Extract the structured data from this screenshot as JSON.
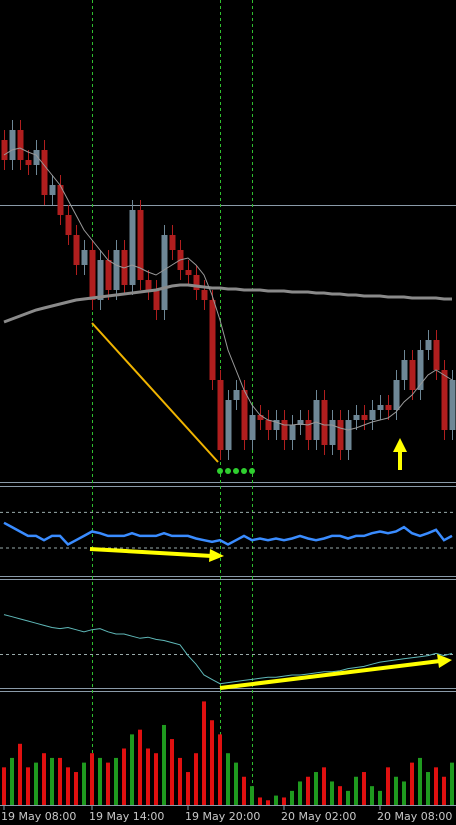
{
  "chart_data": {
    "type": "candlestick",
    "categories": [
      "19 May 08:00",
      null,
      null,
      null,
      null,
      null,
      null,
      null,
      null,
      null,
      null,
      "19 May 14:00",
      null,
      null,
      null,
      null,
      null,
      null,
      null,
      null,
      null,
      null,
      null,
      "19 May 20:00",
      null,
      null,
      null,
      null,
      null,
      null,
      null,
      null,
      null,
      null,
      null,
      "20 May 02:00",
      null,
      null,
      null,
      null,
      null,
      null,
      null,
      null,
      null,
      null,
      null,
      "20 May 08:00",
      null,
      null,
      null,
      null,
      null,
      null,
      null,
      null,
      null
    ],
    "open": [
      340,
      320,
      350,
      320,
      315,
      330,
      285,
      295,
      265,
      245,
      215,
      230,
      180,
      220,
      190,
      230,
      195,
      270,
      200,
      190,
      170,
      245,
      230,
      210,
      205,
      190,
      180,
      100,
      30,
      80,
      90,
      40,
      65,
      60,
      50,
      60,
      40,
      55,
      60,
      40,
      80,
      35,
      60,
      30,
      60,
      65,
      60,
      70,
      75,
      70,
      100,
      120,
      90,
      130,
      140,
      110,
      50
    ],
    "high": [
      350,
      360,
      360,
      330,
      340,
      340,
      305,
      305,
      275,
      255,
      240,
      240,
      230,
      230,
      240,
      240,
      280,
      280,
      210,
      200,
      255,
      255,
      240,
      220,
      215,
      200,
      190,
      110,
      90,
      100,
      100,
      75,
      75,
      70,
      70,
      70,
      65,
      70,
      70,
      90,
      90,
      70,
      70,
      70,
      75,
      75,
      80,
      85,
      85,
      110,
      130,
      130,
      140,
      150,
      150,
      120,
      110
    ],
    "low": [
      310,
      310,
      310,
      305,
      305,
      275,
      275,
      255,
      235,
      205,
      205,
      170,
      170,
      180,
      180,
      185,
      185,
      190,
      180,
      160,
      160,
      220,
      200,
      195,
      180,
      170,
      90,
      20,
      20,
      70,
      30,
      30,
      50,
      40,
      40,
      30,
      30,
      45,
      30,
      30,
      25,
      25,
      20,
      20,
      50,
      50,
      50,
      60,
      60,
      60,
      90,
      80,
      80,
      120,
      100,
      40,
      40
    ],
    "close": [
      320,
      350,
      320,
      315,
      330,
      285,
      295,
      265,
      245,
      215,
      230,
      180,
      220,
      190,
      230,
      195,
      270,
      200,
      190,
      170,
      245,
      230,
      210,
      205,
      190,
      180,
      100,
      30,
      80,
      90,
      40,
      65,
      60,
      50,
      60,
      40,
      55,
      60,
      40,
      80,
      35,
      60,
      30,
      60,
      65,
      60,
      70,
      75,
      70,
      100,
      120,
      90,
      130,
      140,
      110,
      50,
      100
    ],
    "ylim": [
      0,
      480
    ],
    "up_color": "#6e8796",
    "down_color": "#b01e1e",
    "series": [
      {
        "color": "#8a8a8a",
        "values": [
          158,
          161,
          164,
          167,
          170,
          172,
          174,
          176,
          178,
          180,
          181,
          182,
          183,
          184,
          185,
          186,
          187,
          188,
          189,
          190,
          192,
          194,
          195,
          195,
          194,
          193,
          192,
          192,
          191,
          191,
          190,
          190,
          190,
          189,
          189,
          189,
          188,
          188,
          188,
          187,
          187,
          186,
          186,
          185,
          185,
          184,
          184,
          184,
          183,
          183,
          183,
          182,
          182,
          182,
          182,
          181,
          181
        ]
      },
      {
        "color": "#9a9a9a",
        "values": [
          325,
          330,
          332,
          328,
          325,
          315,
          305,
          295,
          280,
          265,
          250,
          240,
          230,
          220,
          215,
          212,
          215,
          212,
          208,
          205,
          210,
          215,
          220,
          222,
          215,
          205,
          185,
          160,
          130,
          110,
          90,
          75,
          65,
          60,
          58,
          55,
          55,
          56,
          55,
          58,
          55,
          55,
          52,
          50,
          52,
          55,
          58,
          60,
          62,
          68,
          78,
          85,
          95,
          105,
          110,
          105,
          100
        ]
      }
    ],
    "oscillator": {
      "color": "#3a8cff",
      "ylim": [
        0,
        100
      ],
      "levels": [
        72,
        31
      ],
      "values": [
        60,
        55,
        50,
        45,
        45,
        40,
        45,
        45,
        35,
        40,
        45,
        50,
        48,
        45,
        45,
        45,
        48,
        45,
        45,
        45,
        48,
        45,
        45,
        45,
        42,
        40,
        38,
        40,
        35,
        40,
        45,
        40,
        42,
        40,
        42,
        40,
        42,
        45,
        42,
        40,
        42,
        45,
        45,
        42,
        45,
        45,
        48,
        50,
        48,
        50,
        55,
        48,
        45,
        48,
        52,
        40,
        45
      ]
    },
    "indicator": {
      "color": "#5fb8b8",
      "ylim": [
        0,
        100
      ],
      "levels": [
        31
      ],
      "values": [
        68,
        66,
        64,
        62,
        60,
        58,
        56,
        55,
        56,
        54,
        52,
        54,
        55,
        52,
        50,
        50,
        48,
        46,
        47,
        45,
        44,
        42,
        40,
        30,
        22,
        12,
        8,
        4,
        5,
        6,
        7,
        8,
        9,
        10,
        10,
        11,
        12,
        12,
        13,
        14,
        15,
        15,
        16,
        18,
        19,
        20,
        22,
        24,
        25,
        26,
        27,
        28,
        29,
        30,
        32,
        30,
        32
      ]
    },
    "volume": {
      "ylim": [
        0,
        120
      ],
      "up_color": "#1f9a1f",
      "down_color": "#e01010",
      "values": [
        40,
        50,
        65,
        40,
        45,
        55,
        50,
        50,
        40,
        35,
        45,
        55,
        50,
        45,
        50,
        60,
        75,
        80,
        60,
        55,
        85,
        70,
        50,
        35,
        55,
        110,
        90,
        75,
        55,
        45,
        30,
        20,
        8,
        5,
        10,
        8,
        15,
        25,
        30,
        35,
        40,
        25,
        20,
        15,
        30,
        35,
        20,
        15,
        40,
        30,
        25,
        45,
        50,
        35,
        40,
        30,
        45
      ]
    }
  }
}
